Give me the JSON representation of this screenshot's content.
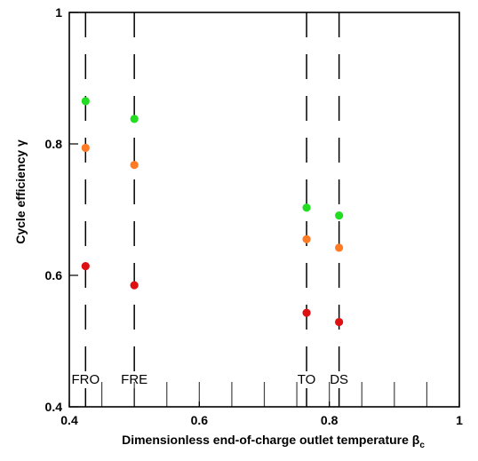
{
  "chart_data": {
    "type": "scatter",
    "xlabel": "Dimensionless end-of-charge outlet temperature β",
    "xlabel_subscript": "c",
    "ylabel": "Cycle efficiency γ",
    "xlim": [
      0.4,
      1
    ],
    "ylim": [
      0.4,
      1
    ],
    "x_ticks": [
      0.4,
      0.6,
      0.8,
      1
    ],
    "x_tick_labels": [
      "0.4",
      "0.6",
      "0.8",
      "1"
    ],
    "y_ticks": [
      0.4,
      0.6,
      0.8,
      1
    ],
    "y_tick_labels": [
      "0.4",
      "0.6",
      "0.8",
      "1"
    ],
    "grid": false,
    "reference_lines": [
      {
        "label": "FRO",
        "x": 0.425
      },
      {
        "label": "FRE",
        "x": 0.5
      },
      {
        "label": "TO",
        "x": 0.765
      },
      {
        "label": "DS",
        "x": 0.815
      }
    ],
    "series": [
      {
        "color": "#22dd22",
        "x": [
          0.425,
          0.5,
          0.765,
          0.815
        ],
        "y": [
          0.865,
          0.838,
          0.703,
          0.691
        ]
      },
      {
        "color": "#ff7a22",
        "x": [
          0.425,
          0.5,
          0.765,
          0.815
        ],
        "y": [
          0.794,
          0.768,
          0.655,
          0.642
        ]
      },
      {
        "color": "#dd1111",
        "x": [
          0.425,
          0.5,
          0.765,
          0.815
        ],
        "y": [
          0.614,
          0.585,
          0.543,
          0.529
        ]
      }
    ]
  }
}
